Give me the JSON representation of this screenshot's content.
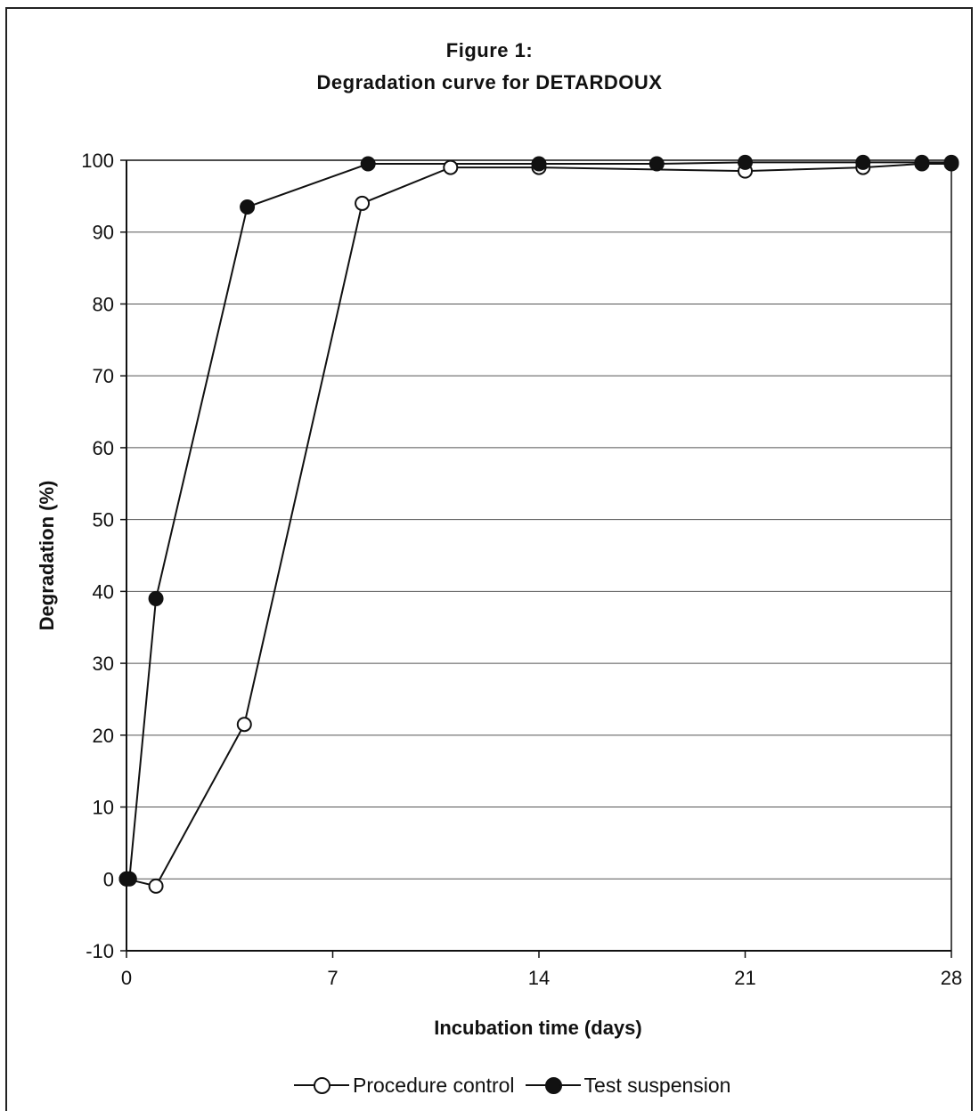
{
  "chart_data": {
    "type": "line",
    "title_line1": "Figure 1:",
    "title_line2": "Degradation curve for DETARDOUX",
    "xlabel": "Incubation time (days)",
    "ylabel": "Degradation (%)",
    "xlim": [
      0,
      28
    ],
    "ylim": [
      -10,
      100
    ],
    "xticks": [
      0,
      7,
      14,
      21,
      28
    ],
    "yticks": [
      -10,
      0,
      10,
      20,
      30,
      40,
      50,
      60,
      70,
      80,
      90,
      100
    ],
    "grid": "horizontal",
    "legend_position": "bottom",
    "series": [
      {
        "name": "Procedure control",
        "marker": "open-circle",
        "color": "#111111",
        "x": [
          0,
          1,
          4,
          8,
          11,
          14,
          21,
          25,
          27,
          28
        ],
        "y": [
          0,
          -1,
          21.5,
          94,
          99,
          99,
          98.5,
          99,
          99.5,
          99.5
        ]
      },
      {
        "name": "Test suspension",
        "marker": "filled-circle",
        "color": "#111111",
        "x": [
          0,
          0.1,
          1,
          4.1,
          8.2,
          14,
          18,
          21,
          25,
          27,
          28
        ],
        "y": [
          0,
          0,
          39,
          93.5,
          99.5,
          99.5,
          99.5,
          99.7,
          99.7,
          99.7,
          99.7
        ]
      }
    ]
  }
}
